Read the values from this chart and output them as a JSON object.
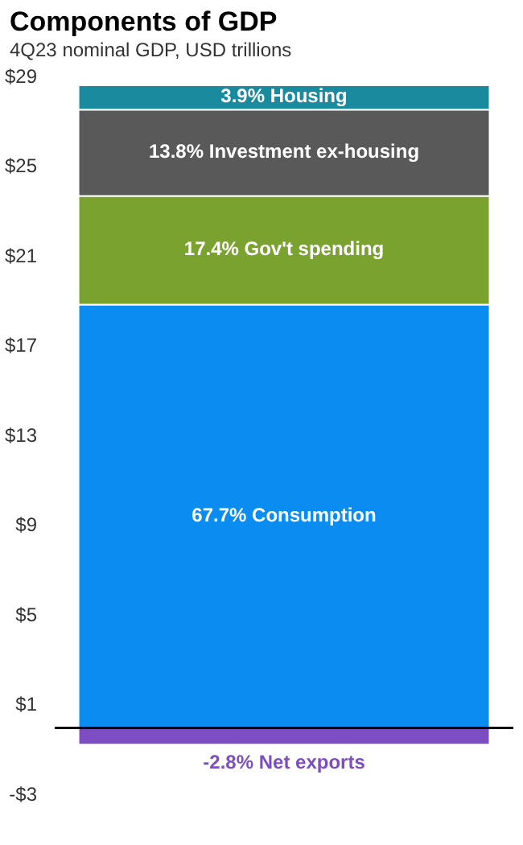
{
  "chart_data": {
    "type": "bar",
    "title": "Components of GDP",
    "subtitle": "4Q23 nominal GDP, USD trillions",
    "categories": [
      null
    ],
    "stacked": true,
    "legend": false,
    "grid": false,
    "series": [
      {
        "color": "#0a8cf0",
        "values": [
          18.9
        ]
      },
      {
        "color": "#7aa22e",
        "values": [
          4.85
        ]
      },
      {
        "color": "#595959",
        "values": [
          3.85
        ]
      },
      {
        "color": "#1a8a9e",
        "values": [
          1.09
        ]
      },
      {
        "color": "#7d4ec2",
        "values": [
          -0.78
        ]
      }
    ],
    "annotations": [
      "67.7% Consumption",
      "17.4% Gov't spending",
      "13.8% Investment ex-housing",
      "3.9% Housing",
      "-2.8% Net exports"
    ],
    "ylim": [
      -3,
      29
    ],
    "yticks": [
      {
        "value": -3,
        "label": "-$3"
      },
      {
        "value": 1,
        "label": "$1"
      },
      {
        "value": 5,
        "label": "$5"
      },
      {
        "value": 9,
        "label": "$9"
      },
      {
        "value": 13,
        "label": "$13"
      },
      {
        "value": 17,
        "label": "$17"
      },
      {
        "value": 21,
        "label": "$21"
      },
      {
        "value": 25,
        "label": "$25"
      },
      {
        "value": 29,
        "label": "$29"
      }
    ],
    "ref_lines": [
      {
        "axis": "y",
        "value": 0,
        "color": "#000000"
      }
    ]
  }
}
